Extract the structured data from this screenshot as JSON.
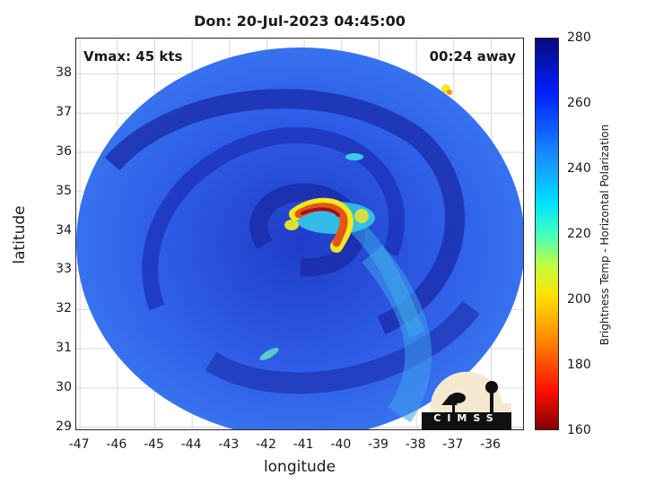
{
  "title": "Don: 20-Jul-2023 04:45:00",
  "vmax": "Vmax: 45 kts",
  "time_away": "00:24 away",
  "xlabel": "longitude",
  "ylabel": "latitude",
  "colorbar_label": "Brightness Temp - Horizontal Polarization",
  "logo_text": "CIMSS",
  "x_ticks": [
    "-47",
    "-46",
    "-45",
    "-44",
    "-43",
    "-42",
    "-41",
    "-40",
    "-39",
    "-38",
    "-37",
    "-36"
  ],
  "y_ticks": [
    "29",
    "30",
    "31",
    "32",
    "33",
    "34",
    "35",
    "36",
    "37",
    "38"
  ],
  "colorbar_ticks": [
    "280",
    "260",
    "240",
    "220",
    "200",
    "180",
    "160"
  ],
  "colors": {
    "background_blue": "#2f63ec",
    "dark_blue": "#1a2fb8",
    "cyan": "#34c6e8",
    "hot_red": "#d7191c",
    "logo_bg": "#f4e9cf"
  },
  "map": {
    "center_lon": -41.1,
    "center_lat": 34.4,
    "lon_range": [
      -47.1,
      -35.1
    ],
    "lat_range": [
      28.9,
      38.9
    ],
    "colormap": "jet",
    "clim": [
      160,
      280
    ],
    "grid": true
  }
}
